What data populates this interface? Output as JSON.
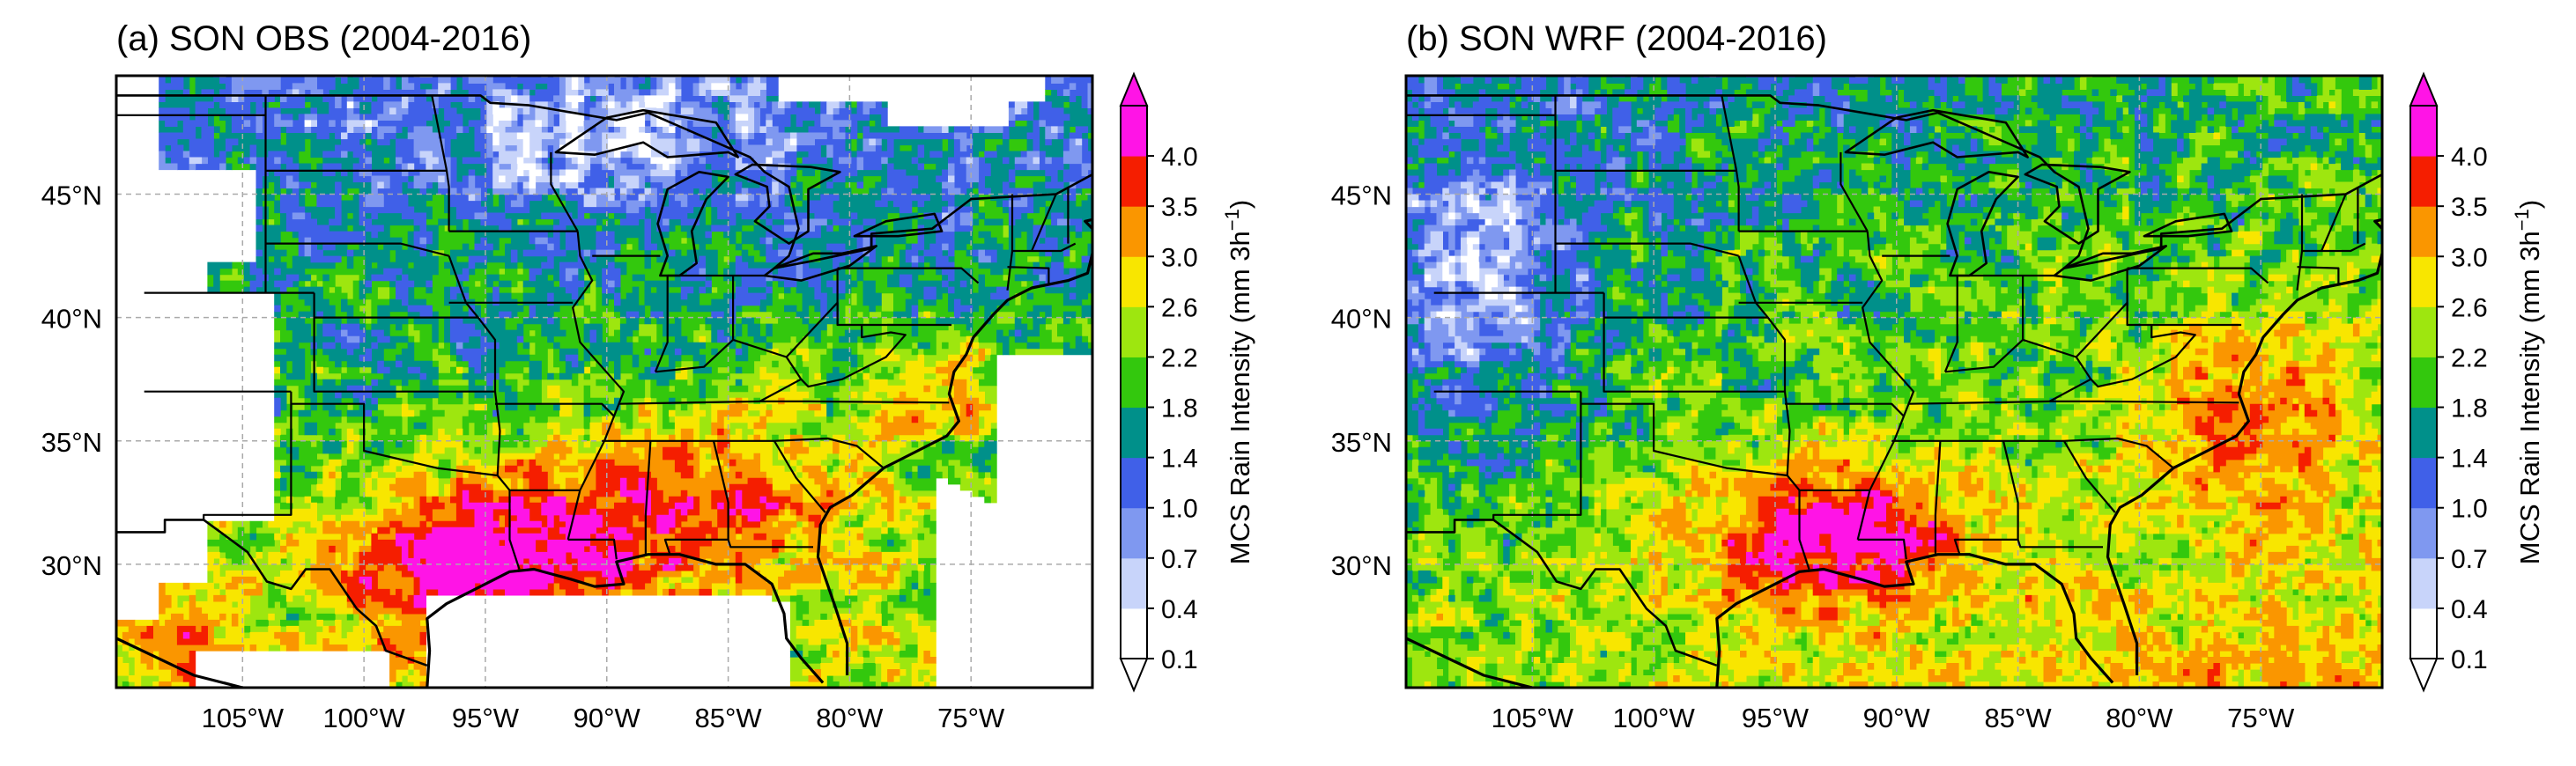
{
  "panels": [
    {
      "title": "(a) SON OBS (2004-2016)",
      "variant": "obs",
      "lat_ticks": [
        "45°N",
        "40°N",
        "35°N",
        "30°N"
      ],
      "lon_ticks": [
        "105°W",
        "100°W",
        "95°W",
        "90°W",
        "85°W",
        "80°W",
        "75°W"
      ],
      "colorbar_label": "MCS Rain Intensity (mm 3h",
      "colorbar_label_sup": "−1",
      "colorbar_label_end": ")"
    },
    {
      "title": "(b) SON WRF (2004-2016)",
      "variant": "wrf",
      "lat_ticks": [
        "45°N",
        "40°N",
        "35°N",
        "30°N"
      ],
      "lon_ticks": [
        "105°W",
        "100°W",
        "95°W",
        "90°W",
        "85°W",
        "80°W",
        "75°W"
      ],
      "colorbar_label": "MCS Rain Intensity (mm 3h",
      "colorbar_label_sup": "−1",
      "colorbar_label_end": ")"
    }
  ],
  "colorbar": {
    "levels": [
      "0.1",
      "0.4",
      "0.7",
      "1.0",
      "1.4",
      "1.8",
      "2.2",
      "2.6",
      "3.0",
      "3.5",
      "4.0"
    ],
    "colors": [
      "#ffffff",
      "#c8d4fa",
      "#7f98f0",
      "#4060e8",
      "#00908a",
      "#33c80d",
      "#9ee60f",
      "#f8e600",
      "#fa9600",
      "#f51e00",
      "#ff14e6"
    ],
    "extend": "both"
  }
}
